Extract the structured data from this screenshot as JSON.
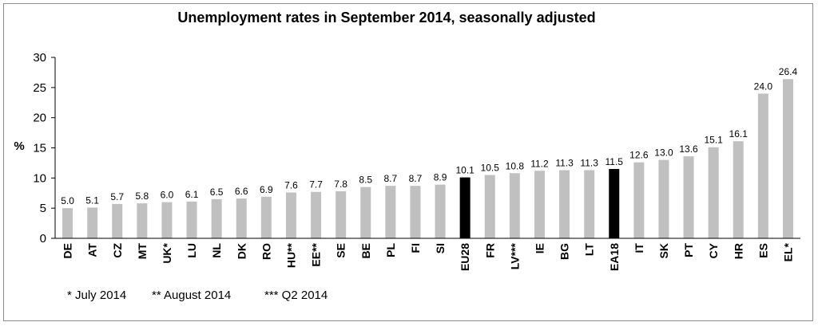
{
  "chart_data": {
    "type": "bar",
    "title": "Unemployment rates in September 2014, seasonally adjusted",
    "ylabel": "%",
    "xlabel": "",
    "ylim": [
      0,
      30
    ],
    "yticks": [
      0,
      5,
      10,
      15,
      20,
      25,
      30
    ],
    "grid": false,
    "categories": [
      "DE",
      "AT",
      "CZ",
      "MT",
      "UK*",
      "LU",
      "NL",
      "DK",
      "RO",
      "HU**",
      "EE**",
      "SE",
      "BE",
      "PL",
      "FI",
      "SI",
      "EU28",
      "FR",
      "LV***",
      "IE",
      "BG",
      "LT",
      "EA18",
      "IT",
      "SK",
      "PT",
      "CY",
      "HR",
      "ES",
      "EL*"
    ],
    "values": [
      5.0,
      5.1,
      5.7,
      5.8,
      6.0,
      6.1,
      6.5,
      6.6,
      6.9,
      7.6,
      7.7,
      7.8,
      8.5,
      8.7,
      8.7,
      8.9,
      10.1,
      10.5,
      10.8,
      11.2,
      11.3,
      11.3,
      11.5,
      12.6,
      13.0,
      13.6,
      15.1,
      16.1,
      24.0,
      26.4
    ],
    "value_labels": [
      "5.0",
      "5.1",
      "5.7",
      "5.8",
      "6.0",
      "6.1",
      "6.5",
      "6.6",
      "6.9",
      "7.6",
      "7.7",
      "7.8",
      "8.5",
      "8.7",
      "8.7",
      "8.9",
      "10.1",
      "10.5",
      "10.8",
      "11.2",
      "11.3",
      "11.3",
      "11.5",
      "12.6",
      "13.0",
      "13.6",
      "15.1",
      "16.1",
      "24.0",
      "26.4"
    ],
    "highlight_categories": [
      "EU28",
      "EA18"
    ],
    "colors": {
      "bar": "#c0c0c0",
      "highlight": "#000000",
      "axis": "#000000"
    },
    "notes": [
      "* July 2014",
      "** August 2014",
      "*** Q2 2014"
    ]
  }
}
